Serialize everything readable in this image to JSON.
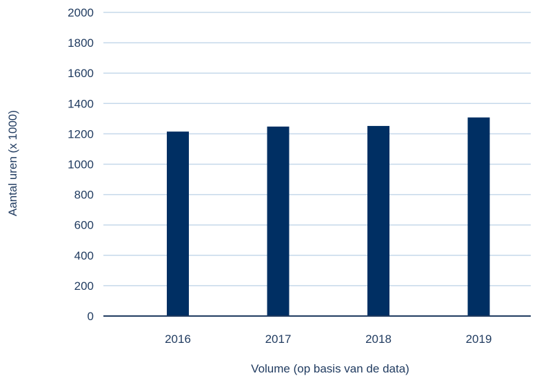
{
  "chart_data": {
    "type": "bar",
    "categories": [
      "2016",
      "2017",
      "2018",
      "2019"
    ],
    "values": [
      1215,
      1248,
      1252,
      1308
    ],
    "title": "",
    "xlabel": "Volume (op basis van de data)",
    "ylabel": "Aantal uren (x 1000)",
    "ylim": [
      0,
      2000
    ],
    "yticks": [
      "0",
      "200",
      "400",
      "600",
      "800",
      "1000",
      "1200",
      "1400",
      "1600",
      "1800",
      "2000"
    ],
    "grid": true,
    "legend": "none",
    "colors": {
      "bar": "#002f63",
      "grid": "#c5d8ea",
      "axis": "#1f3a5f",
      "text": "#1f3a5f"
    }
  }
}
